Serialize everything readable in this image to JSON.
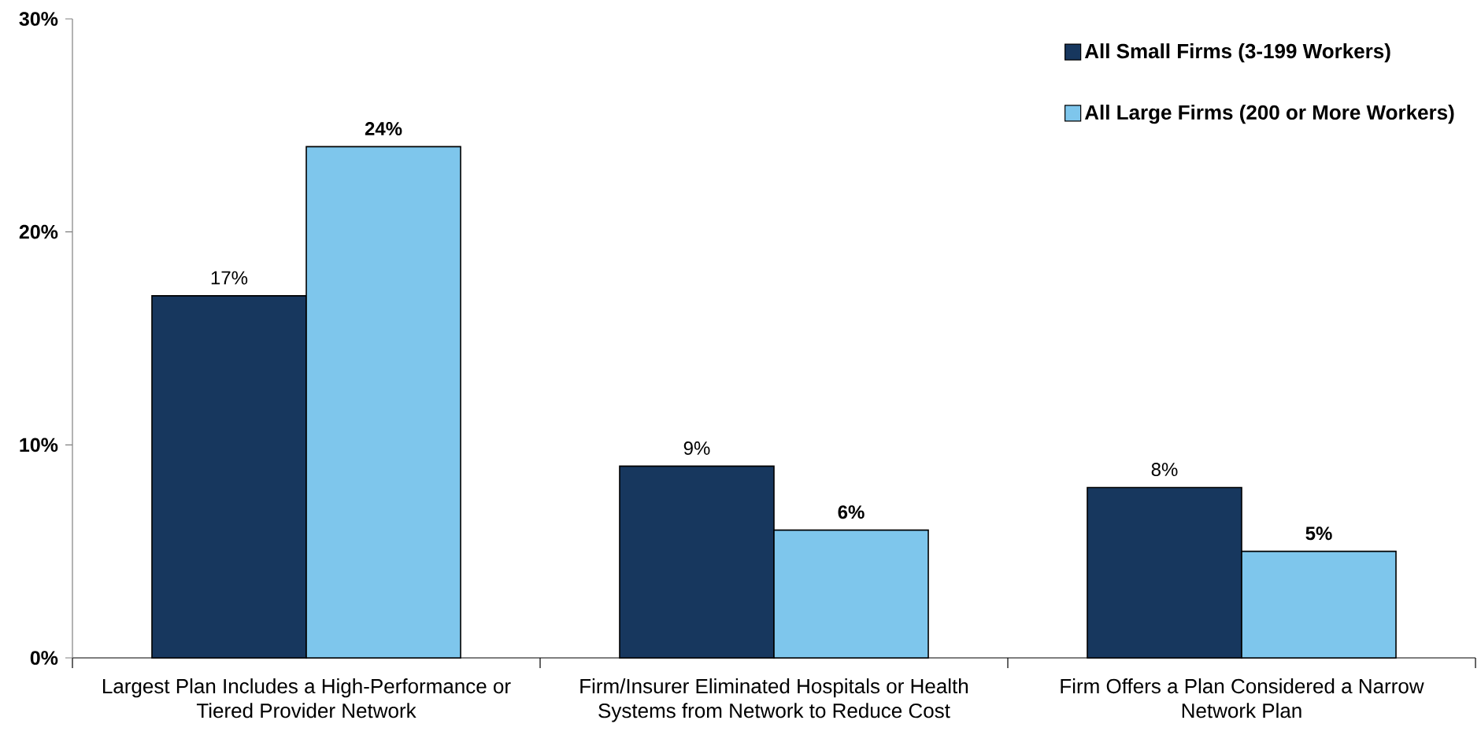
{
  "chart_data": {
    "type": "bar",
    "categories": [
      "Largest Plan Includes a High-Performance or Tiered Provider Network",
      "Firm/Insurer Eliminated Hospitals or Health Systems from Network to Reduce Cost",
      "Firm Offers a Plan Considered a Narrow Network Plan"
    ],
    "series": [
      {
        "name": "All Small Firms (3-199 Workers)",
        "color": "#17375e",
        "values": [
          17,
          9,
          8
        ],
        "value_labels": [
          "17%",
          "9%",
          "8%"
        ]
      },
      {
        "name": "All Large Firms (200 or More Workers)",
        "color": "#7ec6ec",
        "values": [
          24,
          6,
          5
        ],
        "value_labels": [
          "24%",
          "6%",
          "5%"
        ]
      }
    ],
    "ylim": [
      0,
      30
    ],
    "yticks": [
      {
        "value": 0,
        "label": "0%"
      },
      {
        "value": 10,
        "label": "10%"
      },
      {
        "value": 20,
        "label": "20%"
      },
      {
        "value": 30,
        "label": "30%"
      }
    ],
    "legend": "top right"
  }
}
